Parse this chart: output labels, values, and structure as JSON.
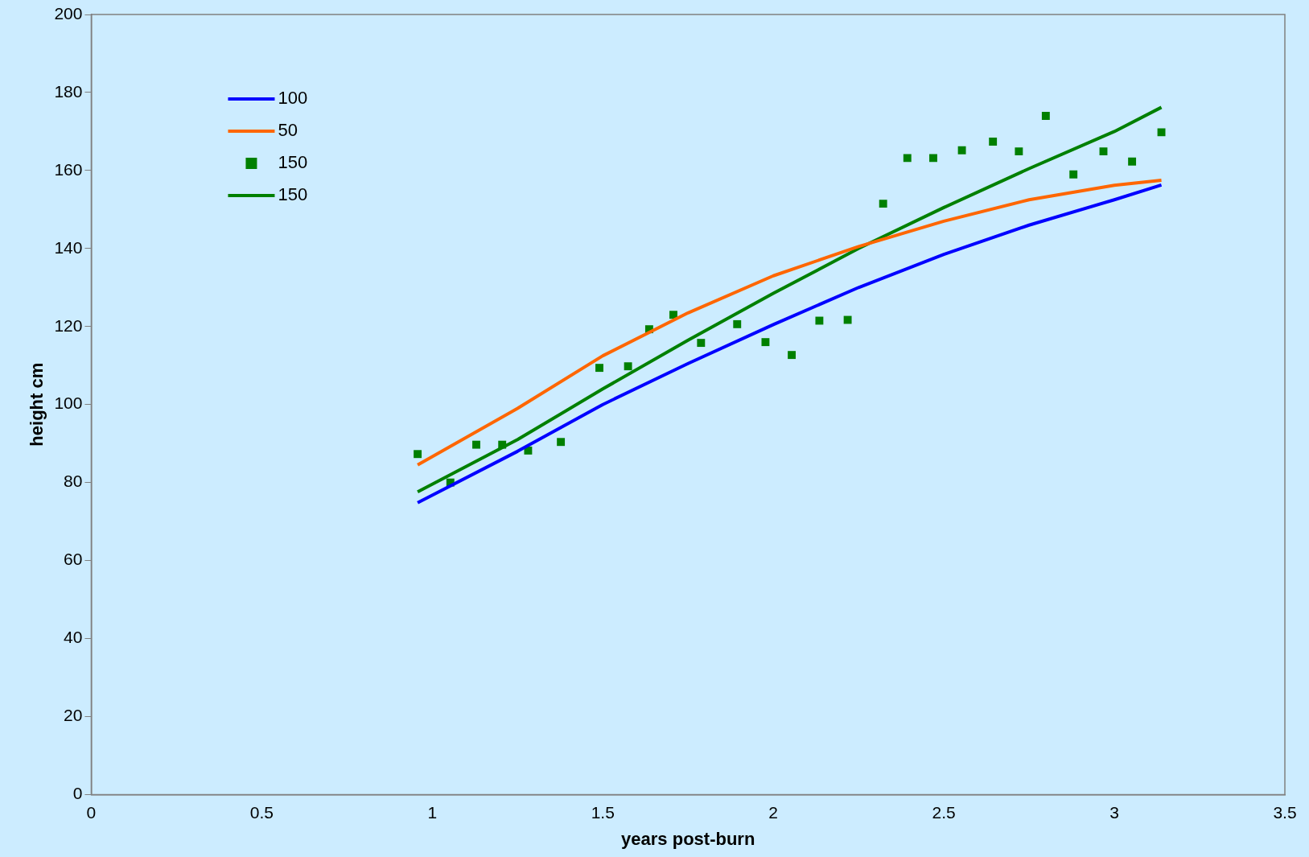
{
  "chart_data": {
    "type": "line",
    "xlabel": "years post-burn",
    "ylabel": "height cm",
    "xlim": [
      0,
      3.5
    ],
    "xticks": [
      0,
      0.5,
      1,
      1.5,
      2,
      2.5,
      3,
      3.5
    ],
    "ylim": [
      0,
      200
    ],
    "yticks": [
      0,
      20,
      40,
      60,
      80,
      100,
      120,
      140,
      160,
      180,
      200
    ],
    "grid": false,
    "legend": "top left",
    "series": [
      {
        "name": "100",
        "color": "#0000ff",
        "marker": "none",
        "x": [
          0.957,
          1.25,
          1.5,
          1.75,
          2,
          2.25,
          2.5,
          2.75,
          3,
          3.138
        ],
        "values": [
          74.8,
          88,
          100,
          110.5,
          120.5,
          130,
          138.5,
          146,
          152.5,
          156.3
        ]
      },
      {
        "name": "50",
        "color": "#ff6600",
        "marker": "none",
        "x": [
          0.957,
          1.25,
          1.5,
          1.75,
          2,
          2.25,
          2.5,
          2.75,
          3,
          3.138
        ],
        "values": [
          84.5,
          99,
          112.5,
          123.5,
          133,
          140.5,
          147,
          152.5,
          156.2,
          157.5
        ]
      },
      {
        "name": "150",
        "type": "scatter",
        "color": "#008000",
        "marker": "square",
        "x": [
          0.957,
          1.053,
          1.129,
          1.205,
          1.281,
          1.377,
          1.49,
          1.574,
          1.636,
          1.707,
          1.788,
          1.894,
          1.977,
          2.054,
          2.135,
          2.218,
          2.322,
          2.393,
          2.469,
          2.553,
          2.644,
          2.72,
          2.799,
          2.88,
          2.968,
          3.052,
          3.138
        ],
        "values": [
          87.3,
          80,
          89.7,
          89.7,
          88.2,
          90.4,
          109.4,
          109.8,
          119.3,
          123,
          115.8,
          120.6,
          116,
          112.7,
          121.5,
          121.7,
          151.5,
          163.2,
          163.2,
          165.2,
          167.4,
          164.9,
          174,
          159,
          164.9,
          162.3,
          169.8
        ]
      },
      {
        "name": "150",
        "color": "#008000",
        "marker": "none",
        "x": [
          0.957,
          1.25,
          1.5,
          1.75,
          2,
          2.25,
          2.5,
          2.75,
          3,
          3.138
        ],
        "values": [
          77.6,
          91,
          104,
          116.5,
          128.5,
          140,
          150.5,
          160.5,
          170,
          176.2
        ]
      }
    ]
  }
}
